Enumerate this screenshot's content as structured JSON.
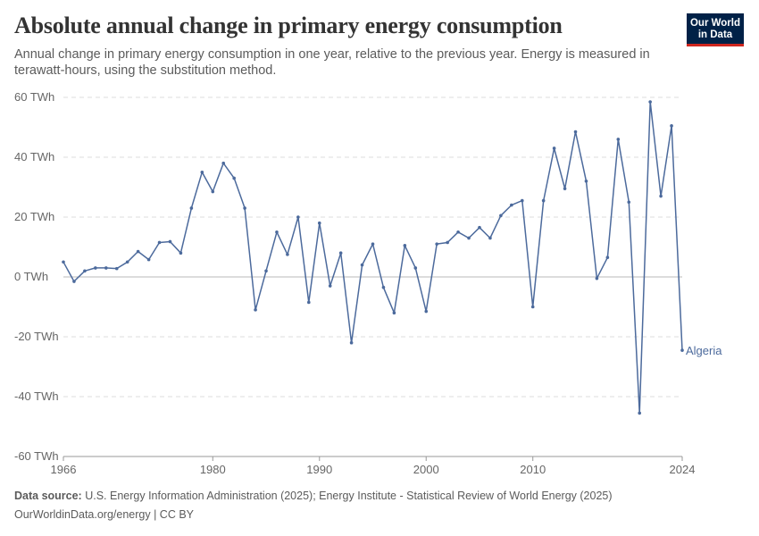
{
  "header": {
    "title": "Absolute annual change in primary energy consumption",
    "subtitle": "Annual change in primary energy consumption in one year, relative to the previous year. Energy is measured in terawatt-hours, using the substitution method."
  },
  "logo": {
    "line1": "Our World",
    "line2": "in Data",
    "background": "#002147",
    "accent": "#ce261e"
  },
  "footer": {
    "source_label": "Data source:",
    "source_text": "U.S. Energy Information Administration (2025); Energy Institute - Statistical Review of World Energy (2025)",
    "url_text": "OurWorldinData.org/energy | CC BY"
  },
  "chart_data": {
    "type": "line",
    "xlim": [
      1966,
      2024
    ],
    "ylim": [
      -60,
      60
    ],
    "yticks": [
      -60,
      -40,
      -20,
      0,
      20,
      40,
      60
    ],
    "ytick_labels": [
      "-60 TWh",
      "-40 TWh",
      "-20 TWh",
      "0 TWh",
      "20 TWh",
      "40 TWh",
      "60 TWh"
    ],
    "xticks": [
      1966,
      1980,
      1990,
      2000,
      2010,
      2024
    ],
    "xtick_labels": [
      "1966",
      "1980",
      "1990",
      "2000",
      "2010",
      "2024"
    ],
    "grid": true,
    "line_color": "#4c6a9c",
    "series": [
      {
        "name": "Algeria",
        "x": [
          1966,
          1967,
          1968,
          1969,
          1970,
          1971,
          1972,
          1973,
          1974,
          1975,
          1976,
          1977,
          1978,
          1979,
          1980,
          1981,
          1982,
          1983,
          1984,
          1985,
          1986,
          1987,
          1988,
          1989,
          1990,
          1991,
          1992,
          1993,
          1994,
          1995,
          1996,
          1997,
          1998,
          1999,
          2000,
          2001,
          2002,
          2003,
          2004,
          2005,
          2006,
          2007,
          2008,
          2009,
          2010,
          2011,
          2012,
          2013,
          2014,
          2015,
          2016,
          2017,
          2018,
          2019,
          2020,
          2021,
          2022,
          2023,
          2024
        ],
        "values": [
          5,
          -1.5,
          2,
          3,
          3,
          2.8,
          5,
          8.5,
          5.8,
          11.5,
          11.8,
          8,
          23,
          35,
          28.5,
          38,
          33,
          23,
          -11,
          2,
          15,
          7.5,
          20,
          -8.5,
          18,
          -3,
          8,
          -22,
          4,
          11,
          -3.5,
          -12,
          10.5,
          3,
          -11.5,
          11,
          11.5,
          15,
          13,
          16.5,
          13,
          20.5,
          24,
          25.5,
          -10,
          25.5,
          43,
          29.5,
          48.5,
          32,
          -0.5,
          6.5,
          46,
          25,
          -45.5,
          58.5,
          27,
          50.5,
          -24.5
        ]
      }
    ]
  }
}
